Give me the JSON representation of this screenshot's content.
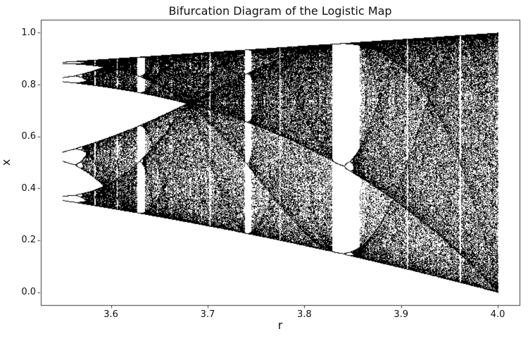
{
  "figure": {
    "background": "#ffffff",
    "text_color": "#111111"
  },
  "chart_data": {
    "type": "scatter",
    "title": "Bifurcation Diagram of the Logistic Map",
    "xlabel": "r",
    "ylabel": "x",
    "x_tick_values": [
      3.6,
      3.7,
      3.8,
      3.9,
      4.0
    ],
    "x_tick_labels": [
      "3.6",
      "3.7",
      "3.8",
      "3.9",
      "4.0"
    ],
    "y_tick_values": [
      0.0,
      0.2,
      0.4,
      0.6,
      0.8,
      1.0
    ],
    "y_tick_labels": [
      "0.0",
      "0.2",
      "0.4",
      "0.6",
      "0.8",
      "1.0"
    ],
    "xlim": [
      3.5275,
      4.0225
    ],
    "ylim": [
      -0.05,
      1.05
    ],
    "grid": false,
    "legend": null,
    "point_color": "#000000",
    "axis_color": "#3a3a3a",
    "marker": "pixel",
    "generator": {
      "map": "logistic",
      "equation": "x_next = r * x * (1 - x)",
      "r_min": 3.55,
      "r_max": 4.0,
      "r_steps": 1300,
      "x0": 0.5,
      "transient_iterations": 100,
      "plotted_iterations": 160
    }
  }
}
